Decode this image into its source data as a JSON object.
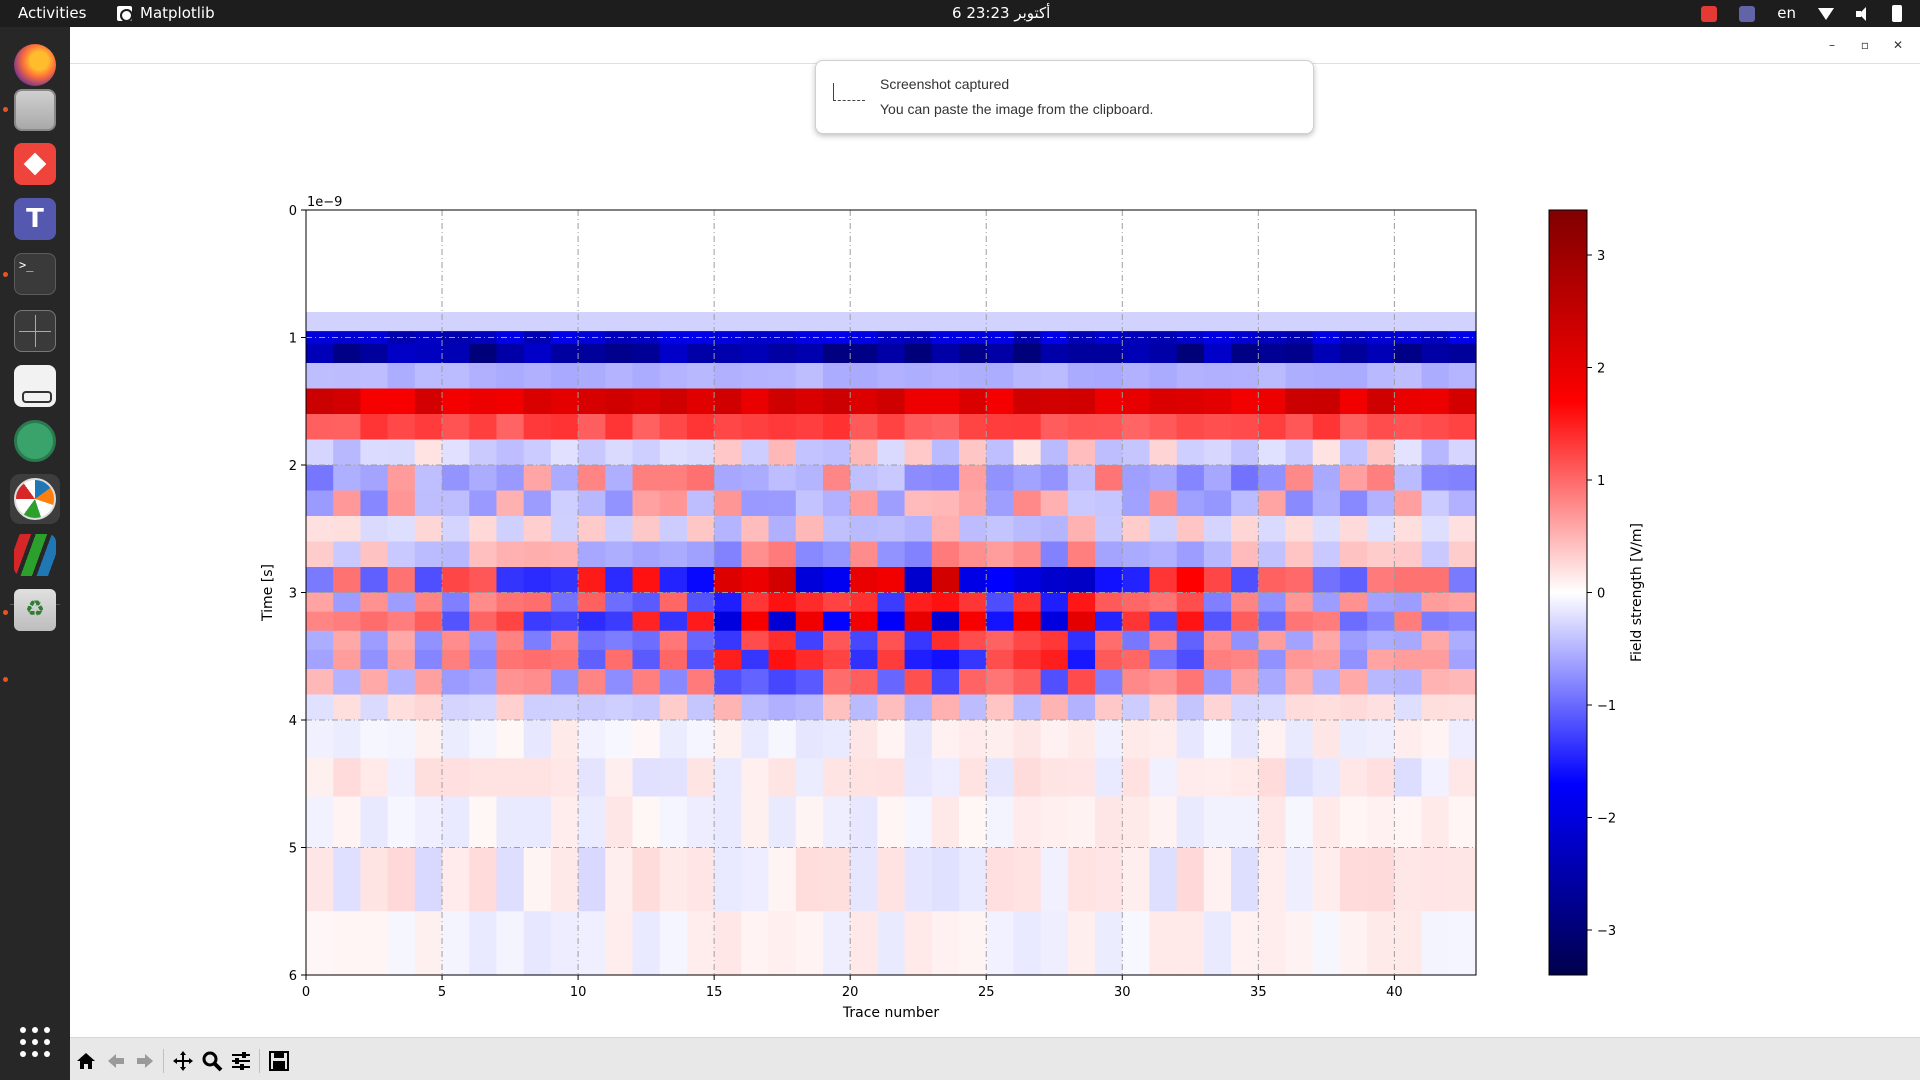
{
  "topbar": {
    "activities": "Activities",
    "app_name": "Matplotlib",
    "clock": "6 أكتوبر  23:23",
    "language": "en"
  },
  "dock": {
    "items": [
      {
        "name": "firefox-icon"
      },
      {
        "name": "files-icon"
      },
      {
        "name": "anydesk-icon"
      },
      {
        "name": "teams-icon",
        "glyph": "T"
      },
      {
        "name": "terminal-icon",
        "glyph": ">_"
      },
      {
        "name": "terminator-icon"
      },
      {
        "name": "reader-icon"
      },
      {
        "name": "atom-icon"
      },
      {
        "name": "matplotlib-icon"
      },
      {
        "name": "paraview-icon"
      },
      {
        "name": "trash-icon",
        "glyph": "♻"
      }
    ]
  },
  "notification": {
    "title": "Screenshot captured",
    "body": "You can paste the image from the clipboard."
  },
  "window": {
    "minimize": "–",
    "maximize": "▫",
    "close": "✕"
  },
  "toolbar": {
    "buttons": [
      "home-icon",
      "back-icon",
      "forward-icon",
      "pan-icon",
      "zoom-icon",
      "configure-subplots-icon",
      "save-icon"
    ]
  },
  "chart_data": {
    "type": "heatmap",
    "title": "",
    "xlabel": "Trace number",
    "ylabel": "Time [s]",
    "y_offset_label": "1e−9",
    "xlim": [
      0,
      43
    ],
    "ylim": [
      6,
      0
    ],
    "xticks": [
      0,
      5,
      10,
      15,
      20,
      25,
      30,
      35,
      40
    ],
    "yticks": [
      0,
      1,
      2,
      3,
      4,
      5,
      6
    ],
    "grid": true,
    "colormap": "seismic",
    "colorbar": {
      "label": "Field strength [V/m]",
      "vmin": -3.4,
      "vmax": 3.4,
      "ticks": [
        -3,
        -2,
        -1,
        0,
        1,
        2,
        3
      ],
      "tick_labels": [
        "−3",
        "−2",
        "−1",
        "0",
        "1",
        "2",
        "3"
      ]
    },
    "n_traces": 43,
    "time_samples": [
      0.0,
      0.5,
      0.8,
      0.95,
      1.05,
      1.2,
      1.4,
      1.6,
      1.8,
      2.0,
      2.2,
      2.4,
      2.6,
      2.8,
      3.0,
      3.15,
      3.3,
      3.45,
      3.6,
      3.8,
      4.0,
      4.3,
      4.6,
      5.0,
      5.5,
      6.0
    ],
    "base_profile": [
      0.0,
      0.0,
      -0.3,
      -2.2,
      -2.6,
      -0.5,
      2.1,
      1.2,
      -0.3,
      -0.6,
      -0.5,
      -0.3,
      0.5,
      1.3,
      0.9,
      -1.2,
      -0.8,
      0.9,
      0.7,
      0.3,
      0.1,
      0.15,
      0.1,
      0.15,
      0.1,
      0.1
    ],
    "late_amplitude": [
      0.4,
      0.5,
      0.7,
      0.5,
      0.9,
      1.0,
      0.8,
      1.2,
      1.3,
      1.2,
      1.5,
      1.3,
      1.6,
      1.4,
      1.7,
      2.6,
      2.2,
      2.8,
      2.4,
      2.0,
      2.3,
      2.1,
      2.6,
      2.8,
      2.2,
      1.8,
      2.3,
      2.6,
      2.7,
      1.6,
      1.4,
      1.2,
      1.8,
      1.0,
      0.9,
      0.7,
      0.6,
      0.5,
      0.7,
      0.4,
      0.5,
      0.5,
      0.4
    ]
  }
}
